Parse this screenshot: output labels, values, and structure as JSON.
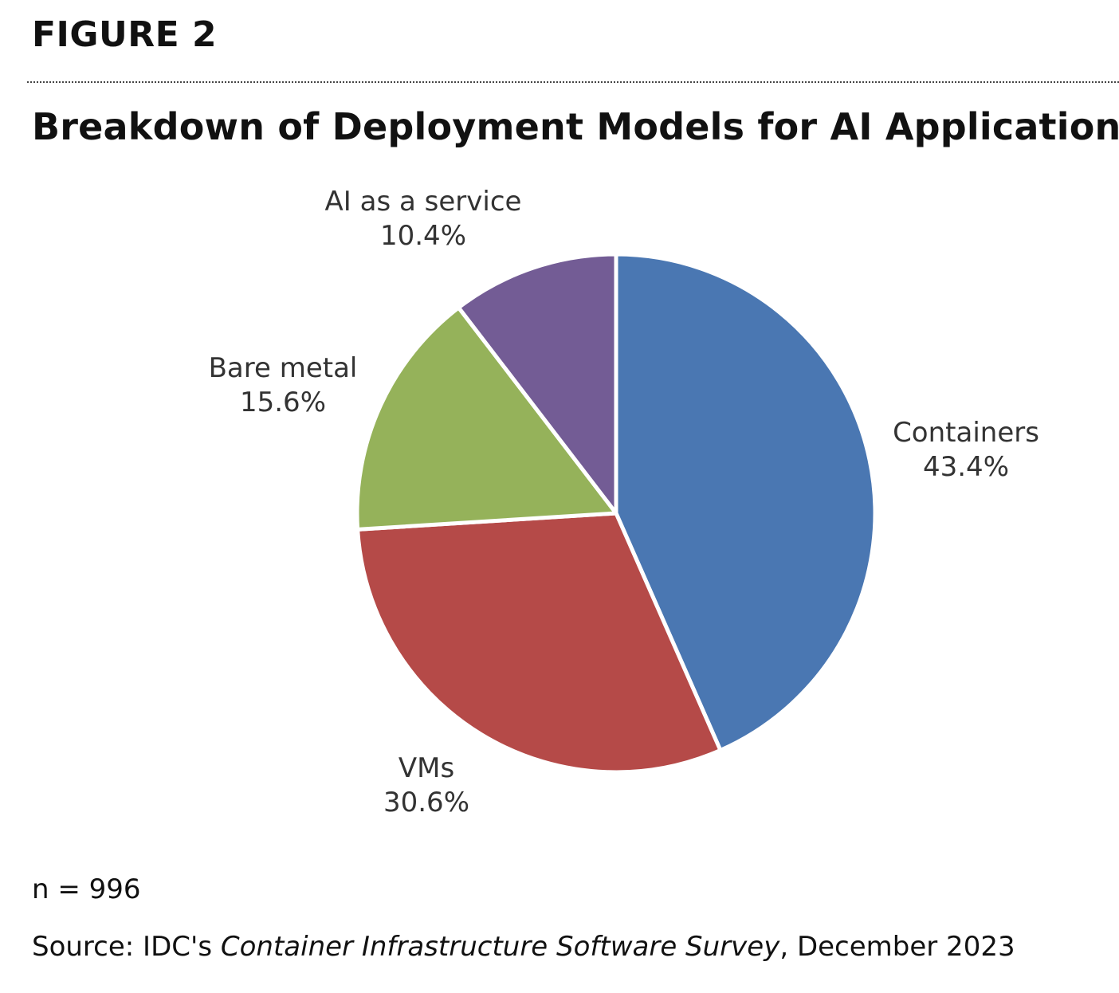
{
  "figure_label": "FIGURE 2",
  "chart_data": {
    "type": "pie",
    "title": "Breakdown of Deployment Models for AI Applications",
    "slices": [
      {
        "label": "Containers",
        "value": 43.4,
        "value_label": "43.4%",
        "color": "#4a77b2"
      },
      {
        "label": "VMs",
        "value": 30.6,
        "value_label": "30.6%",
        "color": "#b54a48"
      },
      {
        "label": "Bare metal",
        "value": 15.6,
        "value_label": "15.6%",
        "color": "#95b25a"
      },
      {
        "label": "AI as a service",
        "value": 10.4,
        "value_label": "10.4%",
        "color": "#735c95"
      }
    ],
    "start": "12 o'clock",
    "direction": "clockwise",
    "labels_placement": "outside"
  },
  "footnote": {
    "sample_size": "n = 996",
    "source_prefix": "Source: IDC's ",
    "source_title": "Container Infrastructure Software Survey",
    "source_suffix": ", December 2023"
  }
}
